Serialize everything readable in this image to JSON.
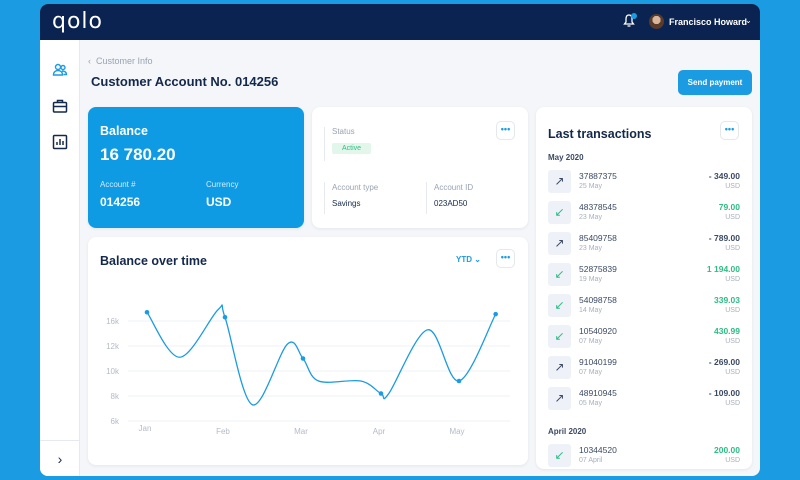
{
  "header": {
    "logo": "qolo",
    "user_name": "Francisco Howard",
    "notification_icon": "bell-icon"
  },
  "sidebar": {
    "items": [
      {
        "icon": "users-icon"
      },
      {
        "icon": "briefcase-icon"
      },
      {
        "icon": "bar-chart-icon"
      }
    ],
    "expand_icon": "chevron-right-icon"
  },
  "breadcrumb": {
    "back_icon": "chevron-left-icon",
    "label": "Customer Info"
  },
  "page_title": "Customer Account No. 014256",
  "send_payment_label": "Send payment",
  "balance_card": {
    "title": "Balance",
    "amount": "16 780.20",
    "account_label": "Account #",
    "account_value": "014256",
    "currency_label": "Currency",
    "currency_value": "USD"
  },
  "info_card": {
    "status_label": "Status",
    "status_value": "Active",
    "account_type_label": "Account type",
    "account_type_value": "Savings",
    "account_id_label": "Account ID",
    "account_id_value": "023AD50",
    "more_label": "•••"
  },
  "chart_card": {
    "title": "Balance over time",
    "period": "YTD",
    "more_label": "•••"
  },
  "chart_data": {
    "type": "line",
    "x_ticks": [
      "Jan",
      "Feb",
      "Mar",
      "Apr",
      "May"
    ],
    "y_ticks": [
      "16k",
      "12k",
      "10k",
      "8k",
      "6k"
    ],
    "y_tick_values": [
      16000,
      12000,
      10000,
      8000,
      6000
    ],
    "grid": true,
    "color": "#1b9be2",
    "markers": [
      {
        "month": "Jan",
        "value": 17400
      },
      {
        "month": "Feb",
        "value": 16600
      },
      {
        "month": "Mar",
        "value": 11000
      },
      {
        "month": "Apr",
        "value": 8200
      },
      {
        "month": "May",
        "value": 9200
      },
      {
        "month": "end of May",
        "value": 17100
      }
    ],
    "curve": [
      [
        0,
        17400
      ],
      [
        0.42,
        11100
      ],
      [
        0.91,
        17800
      ],
      [
        1.0,
        16600
      ],
      [
        1.35,
        7300
      ],
      [
        1.8,
        12300
      ],
      [
        2.0,
        11000
      ],
      [
        2.2,
        9200
      ],
      [
        2.74,
        9200
      ],
      [
        3.0,
        8200
      ],
      [
        3.1,
        8200
      ],
      [
        3.6,
        14600
      ],
      [
        4.0,
        9200
      ],
      [
        4.47,
        17100
      ]
    ]
  },
  "transactions": {
    "title": "Last transactions",
    "more_label": "•••",
    "groups": [
      {
        "label": "May 2020",
        "items": [
          {
            "id": "37887375",
            "date": "25 May",
            "amount": "- 349.00",
            "currency": "USD",
            "type": "out"
          },
          {
            "id": "48378545",
            "date": "23 May",
            "amount": "79.00",
            "currency": "USD",
            "type": "in"
          },
          {
            "id": "85409758",
            "date": "23 May",
            "amount": "- 789.00",
            "currency": "USD",
            "type": "out"
          },
          {
            "id": "52875839",
            "date": "19 May",
            "amount": "1 194.00",
            "currency": "USD",
            "type": "in"
          },
          {
            "id": "54098758",
            "date": "14 May",
            "amount": "339.03",
            "currency": "USD",
            "type": "in"
          },
          {
            "id": "10540920",
            "date": "07 May",
            "amount": "430.99",
            "currency": "USD",
            "type": "in"
          },
          {
            "id": "91040199",
            "date": "07 May",
            "amount": "- 269.00",
            "currency": "USD",
            "type": "out"
          },
          {
            "id": "48910945",
            "date": "05 May",
            "amount": "- 109.00",
            "currency": "USD",
            "type": "out"
          }
        ]
      },
      {
        "label": "April 2020",
        "items": [
          {
            "id": "10344520",
            "date": "07 April",
            "amount": "200.00",
            "currency": "USD",
            "type": "in"
          }
        ]
      }
    ],
    "colors": {
      "in": "#2dbd85",
      "out": "#3b4a63"
    }
  }
}
